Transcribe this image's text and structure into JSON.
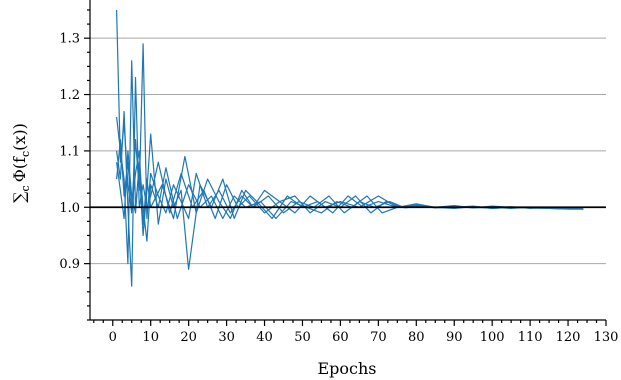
{
  "chart_data": {
    "type": "line",
    "title": "",
    "xlabel": "Epochs",
    "ylabel": "∑c Φ(fc(x))",
    "ylabel_parts": {
      "sum": "∑",
      "sub1": "c",
      "mid": "Φ(f",
      "sub2": "c",
      "end": "(x))"
    },
    "xlim": [
      -6,
      130
    ],
    "ylim": [
      0.8,
      1.35
    ],
    "xticks": [
      0,
      10,
      20,
      30,
      40,
      50,
      60,
      70,
      80,
      90,
      100,
      110,
      120,
      130
    ],
    "yticks": [
      0.9,
      1.0,
      1.1,
      1.2,
      1.3
    ],
    "ytick_labels": [
      "0.9",
      "1.0",
      "1.1",
      "1.2",
      "1.3"
    ],
    "grid": "horizontal",
    "reference_line": 1.0,
    "series_color": "#1f77b4",
    "series": [
      {
        "x": [
          1,
          2,
          3,
          4,
          5,
          6,
          7,
          8,
          9,
          10,
          12,
          14,
          16,
          18,
          20,
          22,
          25,
          28,
          31,
          34,
          37,
          40,
          44,
          48,
          52,
          56,
          60,
          65,
          70,
          75,
          80,
          85,
          90,
          95,
          100,
          105,
          110,
          115,
          120,
          124
        ],
        "y": [
          1.35,
          1.08,
          1.15,
          1.04,
          0.99,
          1.12,
          1.03,
          1.29,
          0.98,
          1.06,
          1.02,
          0.99,
          1.04,
          1.01,
          0.98,
          1.06,
          1.0,
          1.03,
          0.99,
          1.02,
          1.0,
          1.03,
          1.01,
          0.99,
          1.02,
          1.0,
          1.01,
          1.0,
          1.02,
          1.0,
          1.006,
          1.0,
          1.003,
          0.999,
          1.002,
          1.0,
          0.999,
          1.0,
          0.998,
          0.997
        ]
      },
      {
        "x": [
          1,
          2,
          3,
          4,
          5,
          6,
          7,
          8,
          9,
          10,
          12,
          14,
          16,
          18,
          20,
          23,
          26,
          29,
          32,
          35,
          38,
          42,
          46,
          50,
          54,
          58,
          62,
          66,
          70,
          75,
          80,
          85,
          90,
          95,
          100,
          105,
          110,
          115,
          120,
          124
        ],
        "y": [
          1.16,
          1.1,
          1.05,
          0.9,
          1.26,
          1.0,
          1.07,
          0.95,
          1.03,
          1.13,
          0.97,
          1.05,
          1.0,
          1.03,
          0.89,
          1.04,
          1.0,
          1.05,
          0.98,
          1.03,
          1.01,
          0.98,
          1.02,
          1.0,
          1.01,
          0.99,
          1.02,
          1.0,
          1.01,
          1.0,
          1.002,
          1.0,
          0.998,
          1.001,
          0.998,
          1.0,
          0.999,
          0.998,
          0.997,
          0.997
        ]
      },
      {
        "x": [
          1,
          2,
          3,
          4,
          5,
          6,
          7,
          8,
          9,
          10,
          12,
          15,
          18,
          21,
          24,
          27,
          30,
          33,
          36,
          40,
          44,
          48,
          52,
          56,
          60,
          64,
          68,
          72,
          76,
          80,
          85,
          90,
          95,
          100,
          105,
          110,
          115,
          120,
          124
        ],
        "y": [
          1.1,
          1.05,
          1.17,
          1.0,
          0.86,
          1.23,
          1.0,
          1.04,
          1.0,
          1.02,
          1.08,
          0.99,
          1.06,
          1.0,
          1.03,
          0.98,
          1.04,
          1.0,
          1.02,
          0.99,
          1.01,
          1.02,
          0.99,
          1.01,
          1.0,
          1.02,
          0.99,
          1.01,
          1.0,
          1.003,
          0.999,
          1.002,
          1.0,
          0.999,
          1.001,
          0.998,
          0.999,
          0.998,
          0.997
        ]
      },
      {
        "x": [
          1,
          2,
          3,
          4,
          5,
          6,
          7,
          8,
          9,
          10,
          13,
          16,
          19,
          22,
          25,
          28,
          31,
          34,
          37,
          41,
          45,
          49,
          53,
          57,
          61,
          65,
          69,
          73,
          77,
          81,
          85,
          90,
          95,
          100,
          105,
          110,
          115,
          120,
          124
        ],
        "y": [
          1.05,
          1.12,
          1.02,
          1.08,
          1.0,
          1.06,
          1.1,
          0.97,
          1.05,
          1.0,
          1.04,
          0.98,
          1.09,
          0.99,
          1.05,
          1.01,
          0.98,
          1.03,
          1.0,
          1.02,
          0.99,
          1.01,
          1.0,
          1.02,
          0.99,
          1.01,
          1.0,
          1.01,
          0.999,
          1.002,
          1.0,
          1.001,
          0.999,
          1.0,
          0.998,
          1.0,
          0.999,
          0.998,
          0.997
        ]
      },
      {
        "x": [
          1,
          2,
          3,
          4,
          5,
          6,
          7,
          8,
          9,
          10,
          12,
          14,
          17,
          20,
          23,
          26,
          29,
          32,
          35,
          39,
          43,
          47,
          51,
          55,
          59,
          63,
          67,
          71,
          75,
          80,
          85,
          90,
          95,
          100,
          105,
          110,
          115,
          120,
          124
        ],
        "y": [
          1.08,
          1.03,
          0.98,
          1.1,
          1.02,
          0.99,
          1.08,
          1.0,
          0.94,
          1.04,
          1.0,
          1.07,
          0.98,
          1.04,
          1.0,
          1.02,
          0.98,
          1.02,
          1.0,
          1.01,
          0.98,
          1.01,
          1.0,
          0.99,
          1.01,
          1.0,
          1.02,
          0.99,
          1.0,
          1.004,
          0.999,
          1.0,
          1.002,
          0.998,
          1.0,
          0.999,
          0.998,
          0.997,
          0.997
        ]
      }
    ]
  }
}
